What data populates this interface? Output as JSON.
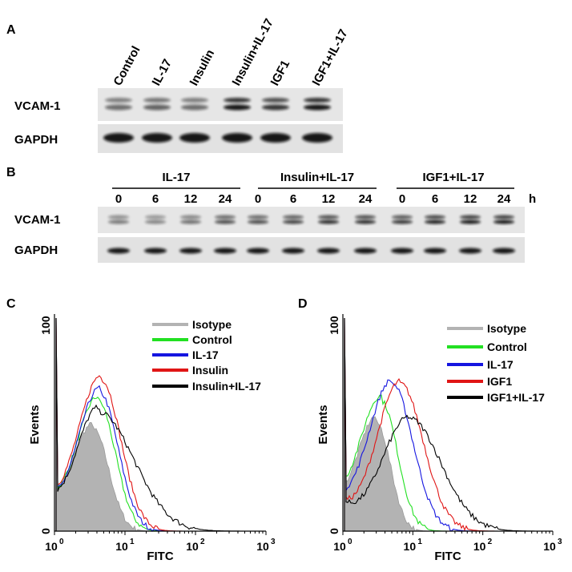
{
  "panel_a": {
    "label": "A",
    "lanes": [
      "Control",
      "IL-17",
      "Insulin",
      "Insulin+IL-17",
      "IGF1",
      "IGF1+IL-17"
    ],
    "rows": [
      "VCAM-1",
      "GAPDH"
    ]
  },
  "panel_b": {
    "label": "B",
    "groups": [
      {
        "name": "IL-17",
        "times": [
          "0",
          "6",
          "12",
          "24"
        ]
      },
      {
        "name": "Insulin+IL-17",
        "times": [
          "0",
          "6",
          "12",
          "24"
        ]
      },
      {
        "name": "IGF1+IL-17",
        "times": [
          "0",
          "6",
          "12",
          "24"
        ]
      }
    ],
    "unit": "h",
    "rows": [
      "VCAM-1",
      "GAPDH"
    ]
  },
  "panel_c": {
    "label": "C",
    "y_axis_label": "Events",
    "x_axis_label": "FITC",
    "y_ticks": [
      "0",
      "100"
    ],
    "x_ticks": [
      {
        "base": "10",
        "exp": "0"
      },
      {
        "base": "10",
        "exp": "1"
      },
      {
        "base": "10",
        "exp": "2"
      },
      {
        "base": "10",
        "exp": "3"
      }
    ],
    "legend": [
      "Isotype",
      "Control",
      "IL-17",
      "Insulin",
      "Insulin+IL-17"
    ]
  },
  "panel_d": {
    "label": "D",
    "y_axis_label": "Events",
    "x_axis_label": "FITC",
    "y_ticks": [
      "0",
      "100"
    ],
    "x_ticks": [
      {
        "base": "10",
        "exp": "0"
      },
      {
        "base": "10",
        "exp": "1"
      },
      {
        "base": "10",
        "exp": "2"
      },
      {
        "base": "10",
        "exp": "3"
      }
    ],
    "legend": [
      "Isotype",
      "Control",
      "IL-17",
      "IGF1",
      "IGF1+IL-17"
    ]
  }
}
